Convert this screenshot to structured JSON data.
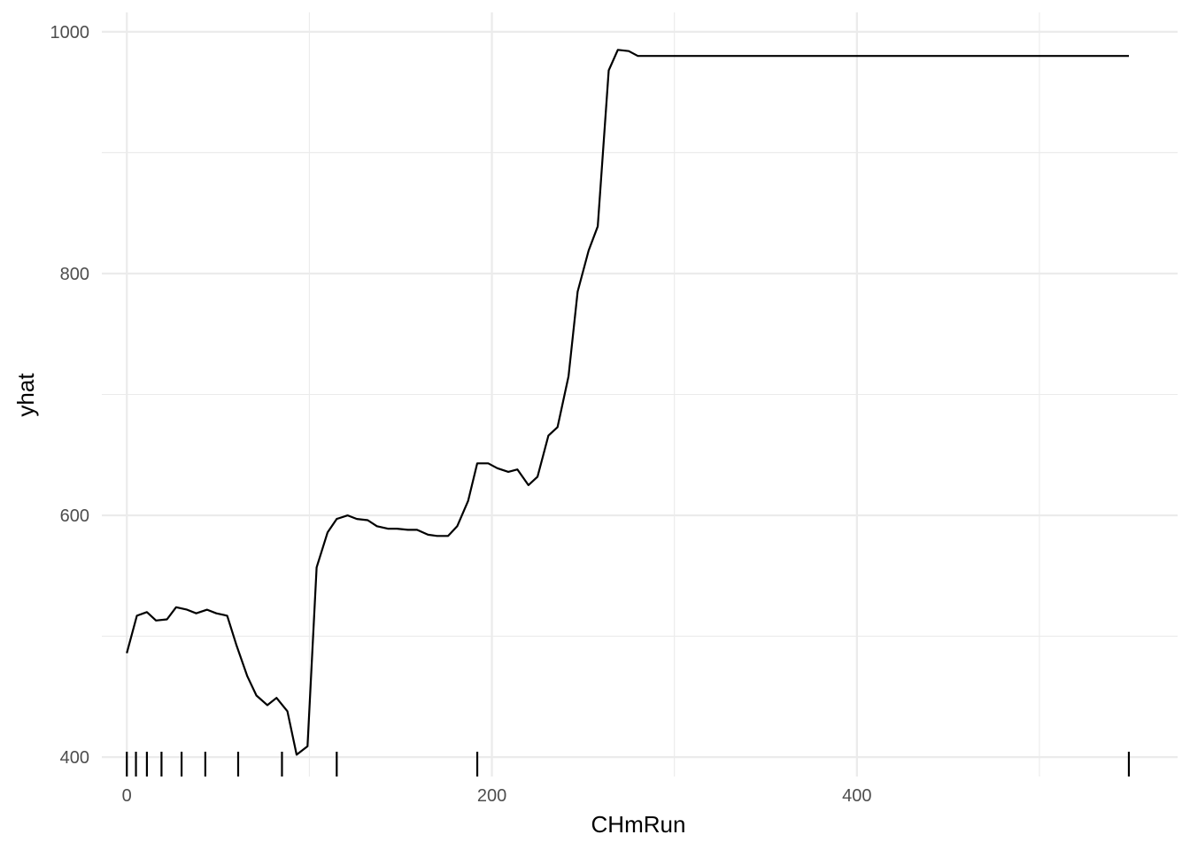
{
  "chart_data": {
    "type": "line",
    "title": "",
    "xlabel": "CHmRun",
    "ylabel": "yhat",
    "xlim": [
      -13.7,
      575.7
    ],
    "ylim": [
      384,
      1016
    ],
    "x_ticks": [
      0,
      200,
      400
    ],
    "x_minor_ticks": [
      100,
      300,
      500
    ],
    "y_ticks": [
      400,
      600,
      800,
      1000
    ],
    "y_minor_ticks": [
      500,
      700,
      900
    ],
    "grid": true,
    "legend": "none",
    "line_color": "#000000",
    "series": [
      {
        "x": [
          0,
          5.5,
          11,
          16,
          22,
          27,
          33,
          38,
          44,
          49,
          55,
          60,
          66,
          71,
          77,
          82,
          88,
          93,
          99,
          104,
          110,
          115,
          121,
          126,
          132,
          137,
          143,
          148,
          154,
          159,
          165,
          170,
          176,
          181,
          187,
          192,
          198,
          203,
          209,
          214,
          220,
          225,
          231,
          236,
          242,
          247,
          253,
          258,
          264,
          269,
          275,
          280,
          286,
          291,
          297,
          302,
          308,
          313,
          319,
          324,
          330,
          335,
          341,
          346,
          352,
          357,
          363,
          368,
          374,
          379,
          385,
          390,
          396,
          401,
          407,
          412,
          418,
          423,
          429,
          434,
          440,
          445,
          451,
          456,
          462,
          467,
          473,
          478,
          484,
          489,
          495,
          500,
          506,
          511,
          517,
          522,
          528,
          533,
          539,
          544,
          549
        ],
        "values": [
          486,
          517,
          520,
          513,
          514,
          524,
          522,
          519,
          522,
          519,
          517,
          493,
          467,
          451,
          443,
          449,
          438,
          402,
          409,
          557,
          586,
          597,
          600,
          597,
          596,
          591,
          589,
          589,
          588,
          588,
          584,
          583,
          583,
          591,
          612,
          643,
          643,
          639,
          636,
          638,
          625,
          632,
          666,
          673,
          715,
          785,
          819,
          839,
          968,
          985,
          984,
          980,
          980,
          980,
          980,
          980,
          980,
          980,
          980,
          980,
          980,
          980,
          980,
          980,
          980,
          980,
          980,
          980,
          980,
          980,
          980,
          980,
          980,
          980,
          980,
          980,
          980,
          980,
          980,
          980,
          980,
          980,
          980,
          980,
          980,
          980,
          980,
          980,
          980,
          980,
          980,
          980,
          980,
          980,
          980,
          980,
          980,
          980,
          980,
          980,
          980
        ]
      }
    ],
    "rug_x": [
      0,
      5,
      11,
      19,
      30,
      43,
      61,
      85,
      115,
      192,
      549
    ]
  }
}
